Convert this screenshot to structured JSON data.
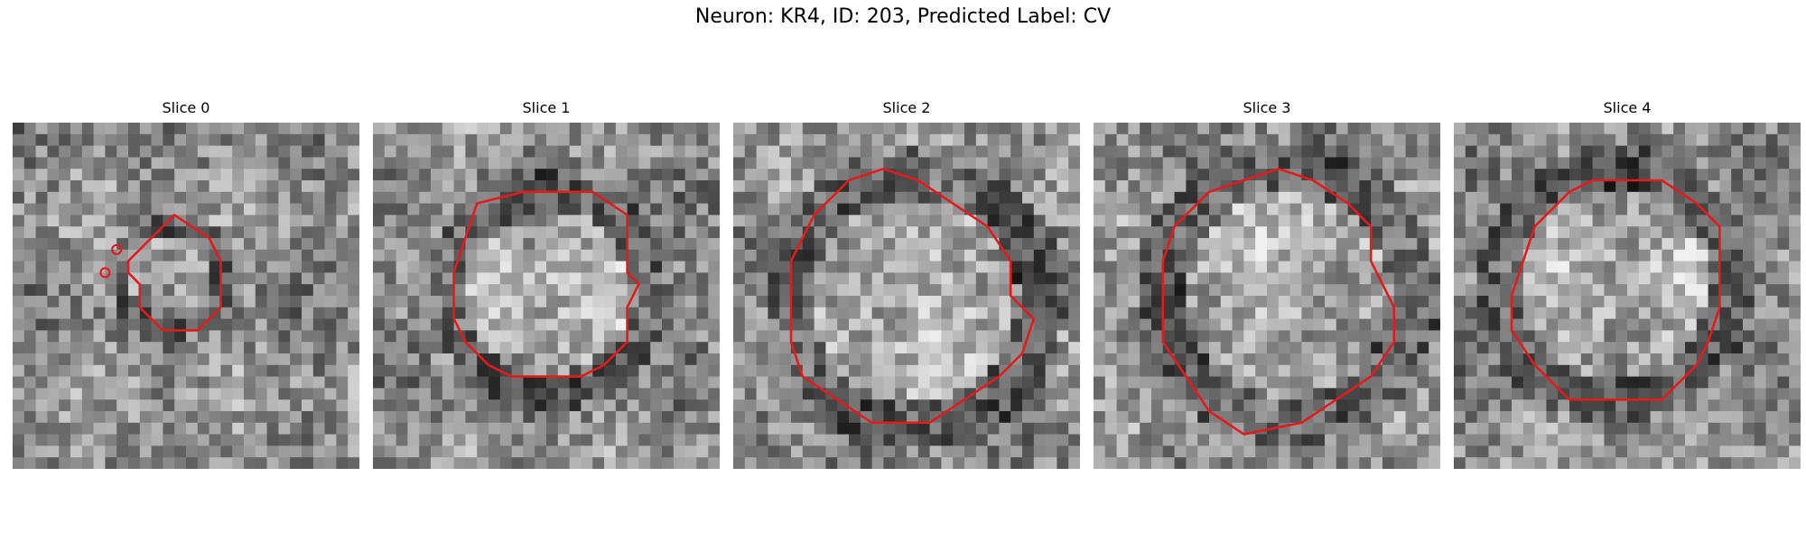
{
  "figure": {
    "title": "Neuron: KR4, ID: 203, Predicted Label: CV"
  },
  "colors": {
    "contour": "#e41a1c"
  },
  "grid_size": 30,
  "panels": [
    {
      "title": "Slice 0",
      "seed": 11,
      "contour": [
        [
          13,
          9
        ],
        [
          14,
          8
        ],
        [
          17,
          10
        ],
        [
          18,
          12
        ],
        [
          18,
          16
        ],
        [
          16,
          18
        ],
        [
          13,
          18
        ],
        [
          11,
          16
        ],
        [
          11,
          14
        ],
        [
          10,
          13
        ],
        [
          10,
          12
        ]
      ],
      "extra_marks": [
        [
          9,
          11
        ],
        [
          8,
          13
        ]
      ]
    },
    {
      "title": "Slice 1",
      "seed": 23,
      "contour": [
        [
          9,
          7
        ],
        [
          13,
          6
        ],
        [
          19,
          6
        ],
        [
          22,
          8
        ],
        [
          22,
          13
        ],
        [
          23,
          14
        ],
        [
          22,
          16
        ],
        [
          22,
          19
        ],
        [
          20,
          21
        ],
        [
          18,
          22
        ],
        [
          12,
          22
        ],
        [
          10,
          21
        ],
        [
          8,
          19
        ],
        [
          7,
          17
        ],
        [
          7,
          13
        ],
        [
          8,
          10
        ]
      ]
    },
    {
      "title": "Slice 2",
      "seed": 37,
      "contour": [
        [
          10,
          5
        ],
        [
          13,
          4
        ],
        [
          16,
          5
        ],
        [
          19,
          7
        ],
        [
          22,
          9
        ],
        [
          24,
          12
        ],
        [
          24,
          15
        ],
        [
          26,
          17
        ],
        [
          25,
          20
        ],
        [
          23,
          22
        ],
        [
          20,
          24
        ],
        [
          17,
          26
        ],
        [
          12,
          26
        ],
        [
          9,
          24
        ],
        [
          6,
          22
        ],
        [
          5,
          19
        ],
        [
          5,
          12
        ],
        [
          7,
          8
        ]
      ]
    },
    {
      "title": "Slice 3",
      "seed": 51,
      "contour": [
        [
          10,
          6
        ],
        [
          13,
          5
        ],
        [
          16,
          4
        ],
        [
          19,
          5
        ],
        [
          22,
          7
        ],
        [
          24,
          9
        ],
        [
          24,
          12
        ],
        [
          25,
          14
        ],
        [
          26,
          16
        ],
        [
          26,
          19
        ],
        [
          24,
          22
        ],
        [
          21,
          24
        ],
        [
          18,
          26
        ],
        [
          13,
          27
        ],
        [
          10,
          25
        ],
        [
          8,
          22
        ],
        [
          6,
          19
        ],
        [
          6,
          12
        ],
        [
          7,
          9
        ]
      ]
    },
    {
      "title": "Slice 4",
      "seed": 67,
      "contour": [
        [
          10,
          6
        ],
        [
          12,
          5
        ],
        [
          18,
          5
        ],
        [
          21,
          7
        ],
        [
          23,
          9
        ],
        [
          23,
          16
        ],
        [
          22,
          19
        ],
        [
          21,
          21
        ],
        [
          18,
          24
        ],
        [
          10,
          24
        ],
        [
          7,
          21
        ],
        [
          5,
          18
        ],
        [
          5,
          15
        ],
        [
          6,
          12
        ],
        [
          7,
          9
        ]
      ]
    }
  ]
}
